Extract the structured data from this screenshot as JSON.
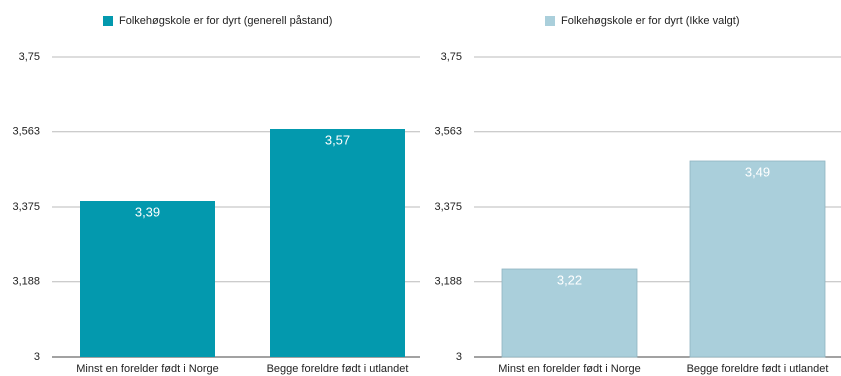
{
  "chart_data": [
    {
      "type": "bar",
      "categories": [
        "Minst en forelder født i Norge",
        "Begge foreldre født i utlandet"
      ],
      "series": [
        {
          "name": "Folkehøgskole er for dyrt (generell påstand)",
          "color": "#0399ae",
          "values": [
            3.39,
            3.57
          ],
          "value_labels": [
            "3,39",
            "3,57"
          ]
        }
      ],
      "ylim": [
        3,
        3.75
      ],
      "yticks": [
        3,
        {
          "value": 3.188,
          "label": "3,188"
        },
        {
          "value": 3.375,
          "label": "3,375"
        },
        {
          "value": 3.563,
          "label": "3,563"
        },
        {
          "value": 3.75,
          "label": "3,75"
        }
      ],
      "grid": true
    },
    {
      "type": "bar",
      "categories": [
        "Minst en forelder født i Norge",
        "Begge foreldre født i utlandet"
      ],
      "series": [
        {
          "name": "Folkehøgskole er for dyrt (Ikke valgt)",
          "color": "#aacfdb",
          "values": [
            3.22,
            3.49
          ],
          "value_labels": [
            "3,22",
            "3,49"
          ]
        }
      ],
      "ylim": [
        3,
        3.75
      ],
      "yticks": [
        3,
        {
          "value": 3.188,
          "label": "3,188"
        },
        {
          "value": 3.375,
          "label": "3,375"
        },
        {
          "value": 3.563,
          "label": "3,563"
        },
        {
          "value": 3.75,
          "label": "3,75"
        }
      ],
      "grid": true
    }
  ]
}
